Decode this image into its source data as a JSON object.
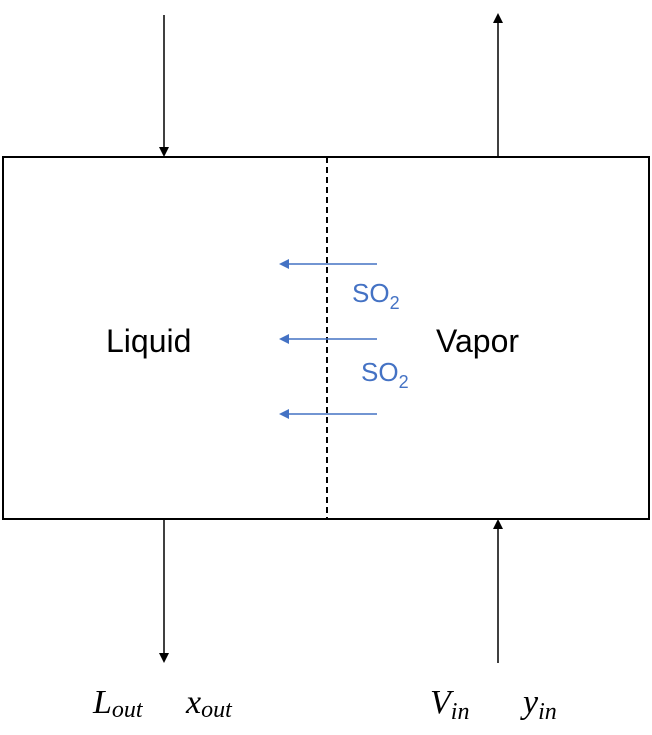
{
  "regions": {
    "liquid_label": "Liquid",
    "vapor_label": "Vapor"
  },
  "transfer": {
    "species": "SO",
    "subscript": "2",
    "color": "#4472C4"
  },
  "streams": {
    "liquid_out_symbol": "L",
    "liquid_out_sub": "out",
    "liquid_out_comp_symbol": "x",
    "liquid_out_comp_sub": "out",
    "vapor_in_symbol": "V",
    "vapor_in_sub": "in",
    "vapor_in_comp_symbol": "y",
    "vapor_in_comp_sub": "in"
  }
}
